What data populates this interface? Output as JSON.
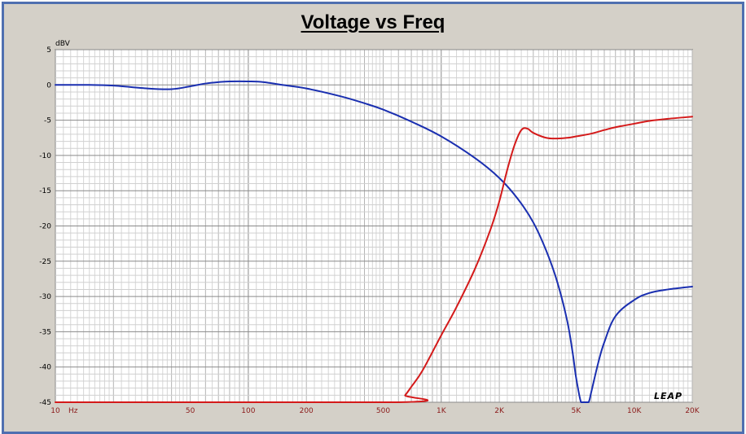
{
  "chart_data": {
    "type": "line",
    "title": "Voltage vs Freq",
    "ylabel": "dBV",
    "xunit": "Hz",
    "xscale": "log",
    "xlim": [
      10,
      20000
    ],
    "ylim": [
      -45,
      5
    ],
    "grid": true,
    "yticks": [
      5,
      0,
      -5,
      -10,
      -15,
      -20,
      -25,
      -30,
      -35,
      -40,
      -45
    ],
    "ytick_labels": [
      "5",
      "0",
      "-5",
      "-10",
      "-15",
      "-20",
      "-25",
      "-30",
      "-35",
      "-40",
      "-45"
    ],
    "xticks": [
      10,
      50,
      100,
      200,
      500,
      1000,
      2000,
      5000,
      10000,
      20000
    ],
    "xtick_labels": [
      "10",
      "50",
      "100",
      "200",
      "500",
      "1K",
      "2K",
      "5K",
      "10K",
      "20K"
    ],
    "watermark": "LEAP",
    "series": [
      {
        "color": "#1a2fb0",
        "x": [
          10,
          15,
          20,
          30,
          40,
          50,
          60,
          70,
          80,
          100,
          120,
          150,
          200,
          300,
          400,
          500,
          700,
          1000,
          1500,
          2000,
          2500,
          3000,
          3500,
          4000,
          4500,
          4800,
          5000,
          5300,
          5500,
          5800,
          6000,
          6500,
          7000,
          8000,
          10000,
          12000,
          15000,
          20000
        ],
        "y": [
          0,
          0,
          -0.1,
          -0.5,
          -0.6,
          -0.2,
          0.2,
          0.4,
          0.5,
          0.5,
          0.4,
          0,
          -0.5,
          -1.6,
          -2.6,
          -3.5,
          -5.2,
          -7.3,
          -10.4,
          -13.2,
          -16.2,
          -19.5,
          -23.5,
          -28.0,
          -33.5,
          -38.0,
          -41.5,
          -45.0,
          -45.0,
          -45.0,
          -43.5,
          -39.5,
          -36.5,
          -32.8,
          -30.5,
          -29.5,
          -29.0,
          -28.6
        ]
      },
      {
        "color": "#d41a1a",
        "x": [
          10,
          600,
          650,
          700,
          800,
          1000,
          1200,
          1500,
          1800,
          2000,
          2200,
          2400,
          2600,
          2800,
          3000,
          3500,
          4000,
          4500,
          5000,
          6000,
          7000,
          8000,
          10000,
          12000,
          15000,
          20000
        ],
        "y": [
          -45,
          -45,
          -44.0,
          -42.8,
          -40.5,
          -35.5,
          -31.5,
          -26.0,
          -20.5,
          -16.5,
          -12.0,
          -8.5,
          -6.4,
          -6.2,
          -6.8,
          -7.5,
          -7.6,
          -7.5,
          -7.3,
          -6.9,
          -6.4,
          -6.0,
          -5.5,
          -5.1,
          -4.8,
          -4.5
        ]
      }
    ]
  }
}
